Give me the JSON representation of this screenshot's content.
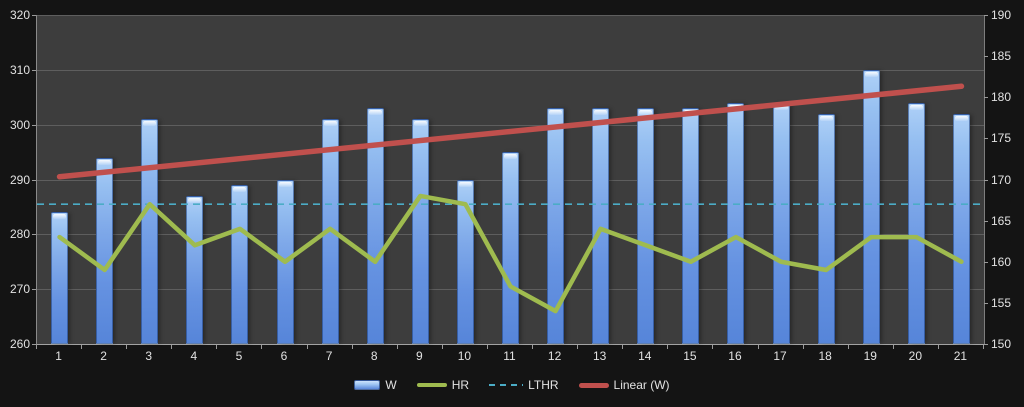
{
  "chart_data": {
    "type": "bar",
    "categories": [
      "1",
      "2",
      "3",
      "4",
      "5",
      "6",
      "7",
      "8",
      "9",
      "10",
      "11",
      "12",
      "13",
      "14",
      "15",
      "16",
      "17",
      "18",
      "19",
      "20",
      "21"
    ],
    "series": [
      {
        "name": "W",
        "type": "bar",
        "axis": "left",
        "values": [
          284,
          294,
          301,
          287,
          289,
          290,
          301,
          303,
          301,
          290,
          295,
          303,
          303,
          303,
          303,
          304,
          304,
          302,
          310,
          304,
          302
        ]
      },
      {
        "name": "HR",
        "type": "line",
        "axis": "right",
        "values": [
          163,
          159,
          167,
          162,
          164,
          160,
          164,
          160,
          168,
          167,
          157,
          154,
          164,
          162,
          160,
          163,
          160,
          159,
          163,
          163,
          160
        ]
      },
      {
        "name": "LTHR",
        "type": "dashed-line",
        "axis": "right",
        "constant": 167
      },
      {
        "name": "Linear (W)",
        "type": "trendline",
        "axis": "left",
        "start": 290.5,
        "end": 307
      }
    ],
    "title": "",
    "xlabel": "",
    "ylabel": "",
    "left_axis": {
      "min": 260,
      "max": 320,
      "step": 10,
      "ticks": [
        260,
        270,
        280,
        290,
        300,
        310,
        320
      ]
    },
    "right_axis": {
      "min": 150,
      "max": 190,
      "step": 5,
      "ticks": [
        150,
        155,
        160,
        165,
        170,
        175,
        180,
        185,
        190
      ]
    },
    "grid": true,
    "legend_position": "bottom",
    "colors": {
      "bar_main": "#7fa9e9",
      "hr_line": "#9fbb4f",
      "lthr_line": "#4bacc6",
      "linear_line": "#c0504d",
      "plot_background": "#3d3d3d",
      "page_background": "#141414",
      "gridline": "#5e5e5e",
      "text": "#e2e2e2"
    }
  },
  "legend": {
    "items": [
      {
        "label": "W"
      },
      {
        "label": "HR"
      },
      {
        "label": "LTHR"
      },
      {
        "label": "Linear (W)"
      }
    ]
  }
}
